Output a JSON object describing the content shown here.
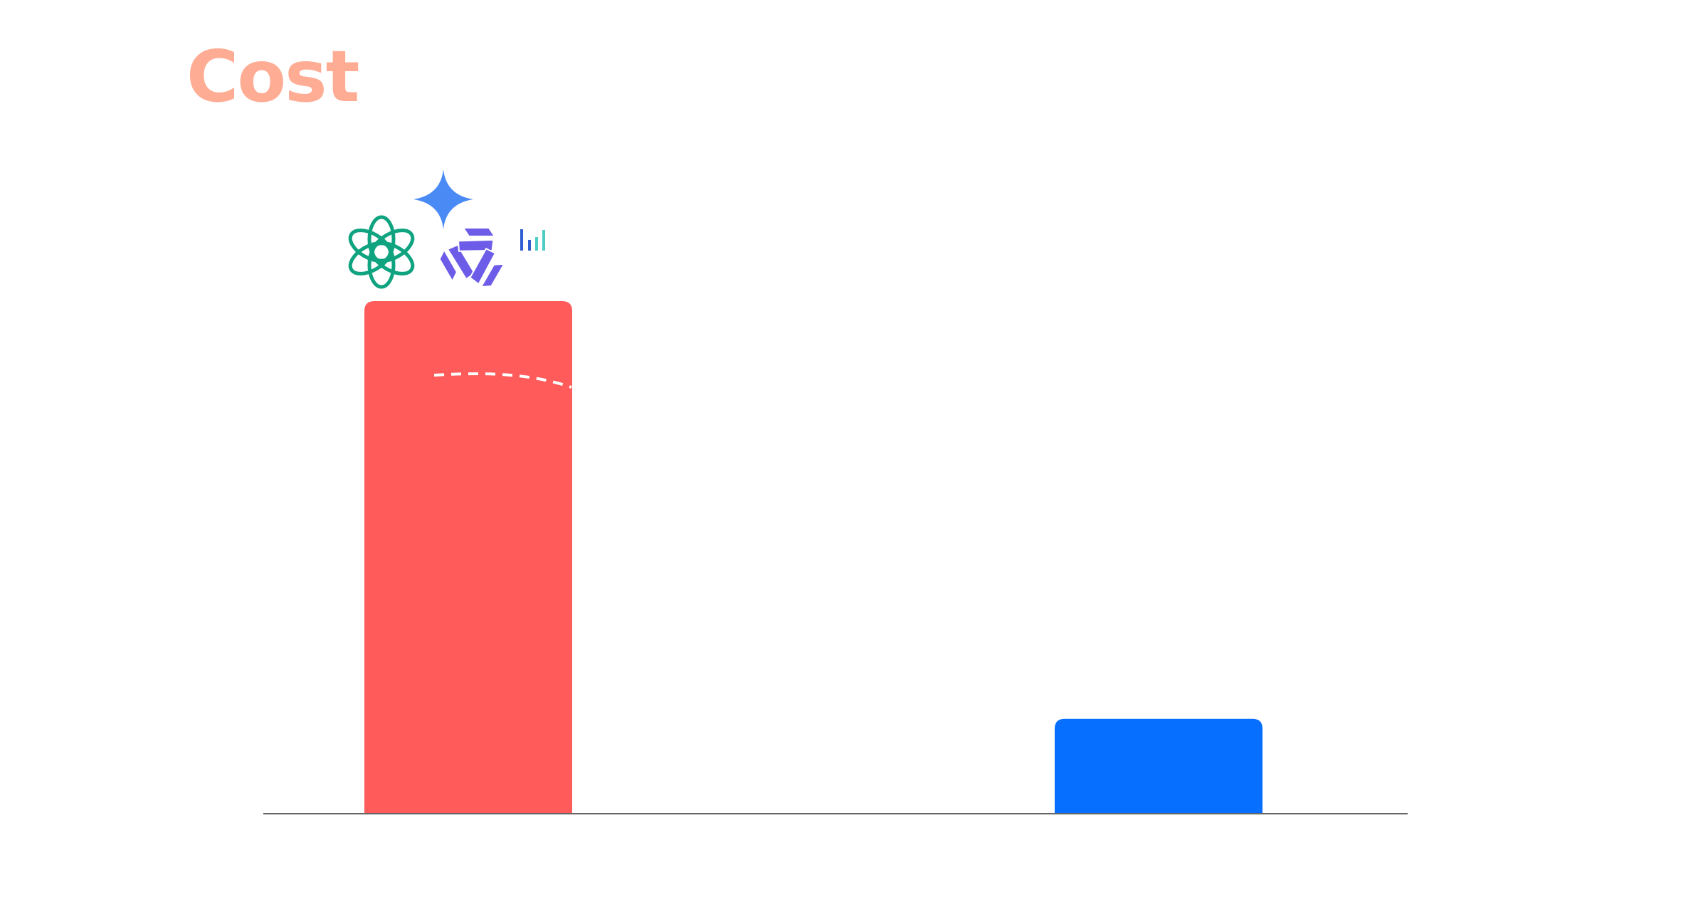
{
  "chart_data": {
    "type": "bar",
    "title": "Cost",
    "xlabel": "",
    "ylabel": "",
    "categories": [
      "",
      ""
    ],
    "values": [
      100,
      18.5
    ],
    "ylim": [
      0,
      100
    ],
    "grid": false,
    "legend": "none",
    "colors": [
      "#ff5b5b",
      "#066fff"
    ],
    "baseline_color": "#666666",
    "bar_icons": [
      [
        "openai-logo-icon",
        "gemini-sparkle-icon",
        "model-weave-logo-icon",
        "bar-signal-logo-icon"
      ],
      []
    ],
    "icon_colors": {
      "openai": "#10a37f",
      "gemini": "#4a8af4",
      "weave": "#6c5ce7",
      "signal_dark": "#2f5fd0",
      "signal_light": "#4ecdc4"
    }
  }
}
